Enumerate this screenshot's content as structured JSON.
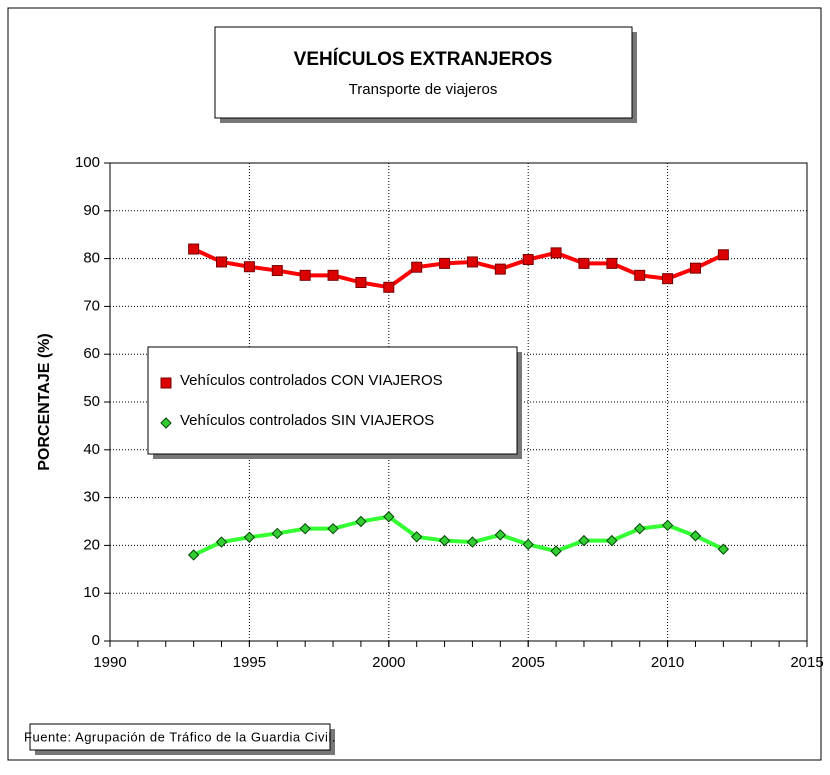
{
  "chart_data": {
    "type": "line",
    "title": "VEHÍCULOS EXTRANJEROS",
    "subtitle": "Transporte de viajeros",
    "y_label": "PORCENTAJE (%)",
    "source": "Fuente: Agrupación de Tráfico de la Guardia Civil.",
    "x": [
      1993,
      1994,
      1995,
      1996,
      1997,
      1998,
      1999,
      2000,
      2001,
      2002,
      2003,
      2004,
      2005,
      2006,
      2007,
      2008,
      2009,
      2010,
      2011,
      2012
    ],
    "series": [
      {
        "name": "Vehículos controlados CON VIAJEROS",
        "color": "#ff0000",
        "marker": "square",
        "values": [
          82,
          79.3,
          78.3,
          77.5,
          76.5,
          76.5,
          75,
          74,
          78.2,
          79,
          79.3,
          77.8,
          79.8,
          81.2,
          79,
          79,
          76.5,
          75.8,
          78,
          80.8
        ]
      },
      {
        "name": "Vehículos controlados SIN VIAJEROS",
        "color": "#33ff33",
        "marker": "diamond",
        "values": [
          18,
          20.7,
          21.7,
          22.5,
          23.5,
          23.5,
          25,
          26,
          21.8,
          21,
          20.7,
          22.2,
          20.2,
          18.8,
          21,
          21,
          23.5,
          24.2,
          22,
          19.2
        ]
      }
    ],
    "xlim": [
      1990,
      2015
    ],
    "xticks": [
      1990,
      1995,
      2000,
      2005,
      2010,
      2015
    ],
    "ylim": [
      0,
      100
    ],
    "yticks": [
      0,
      10,
      20,
      30,
      40,
      50,
      60,
      70,
      80,
      90,
      100
    ],
    "grid": true
  }
}
